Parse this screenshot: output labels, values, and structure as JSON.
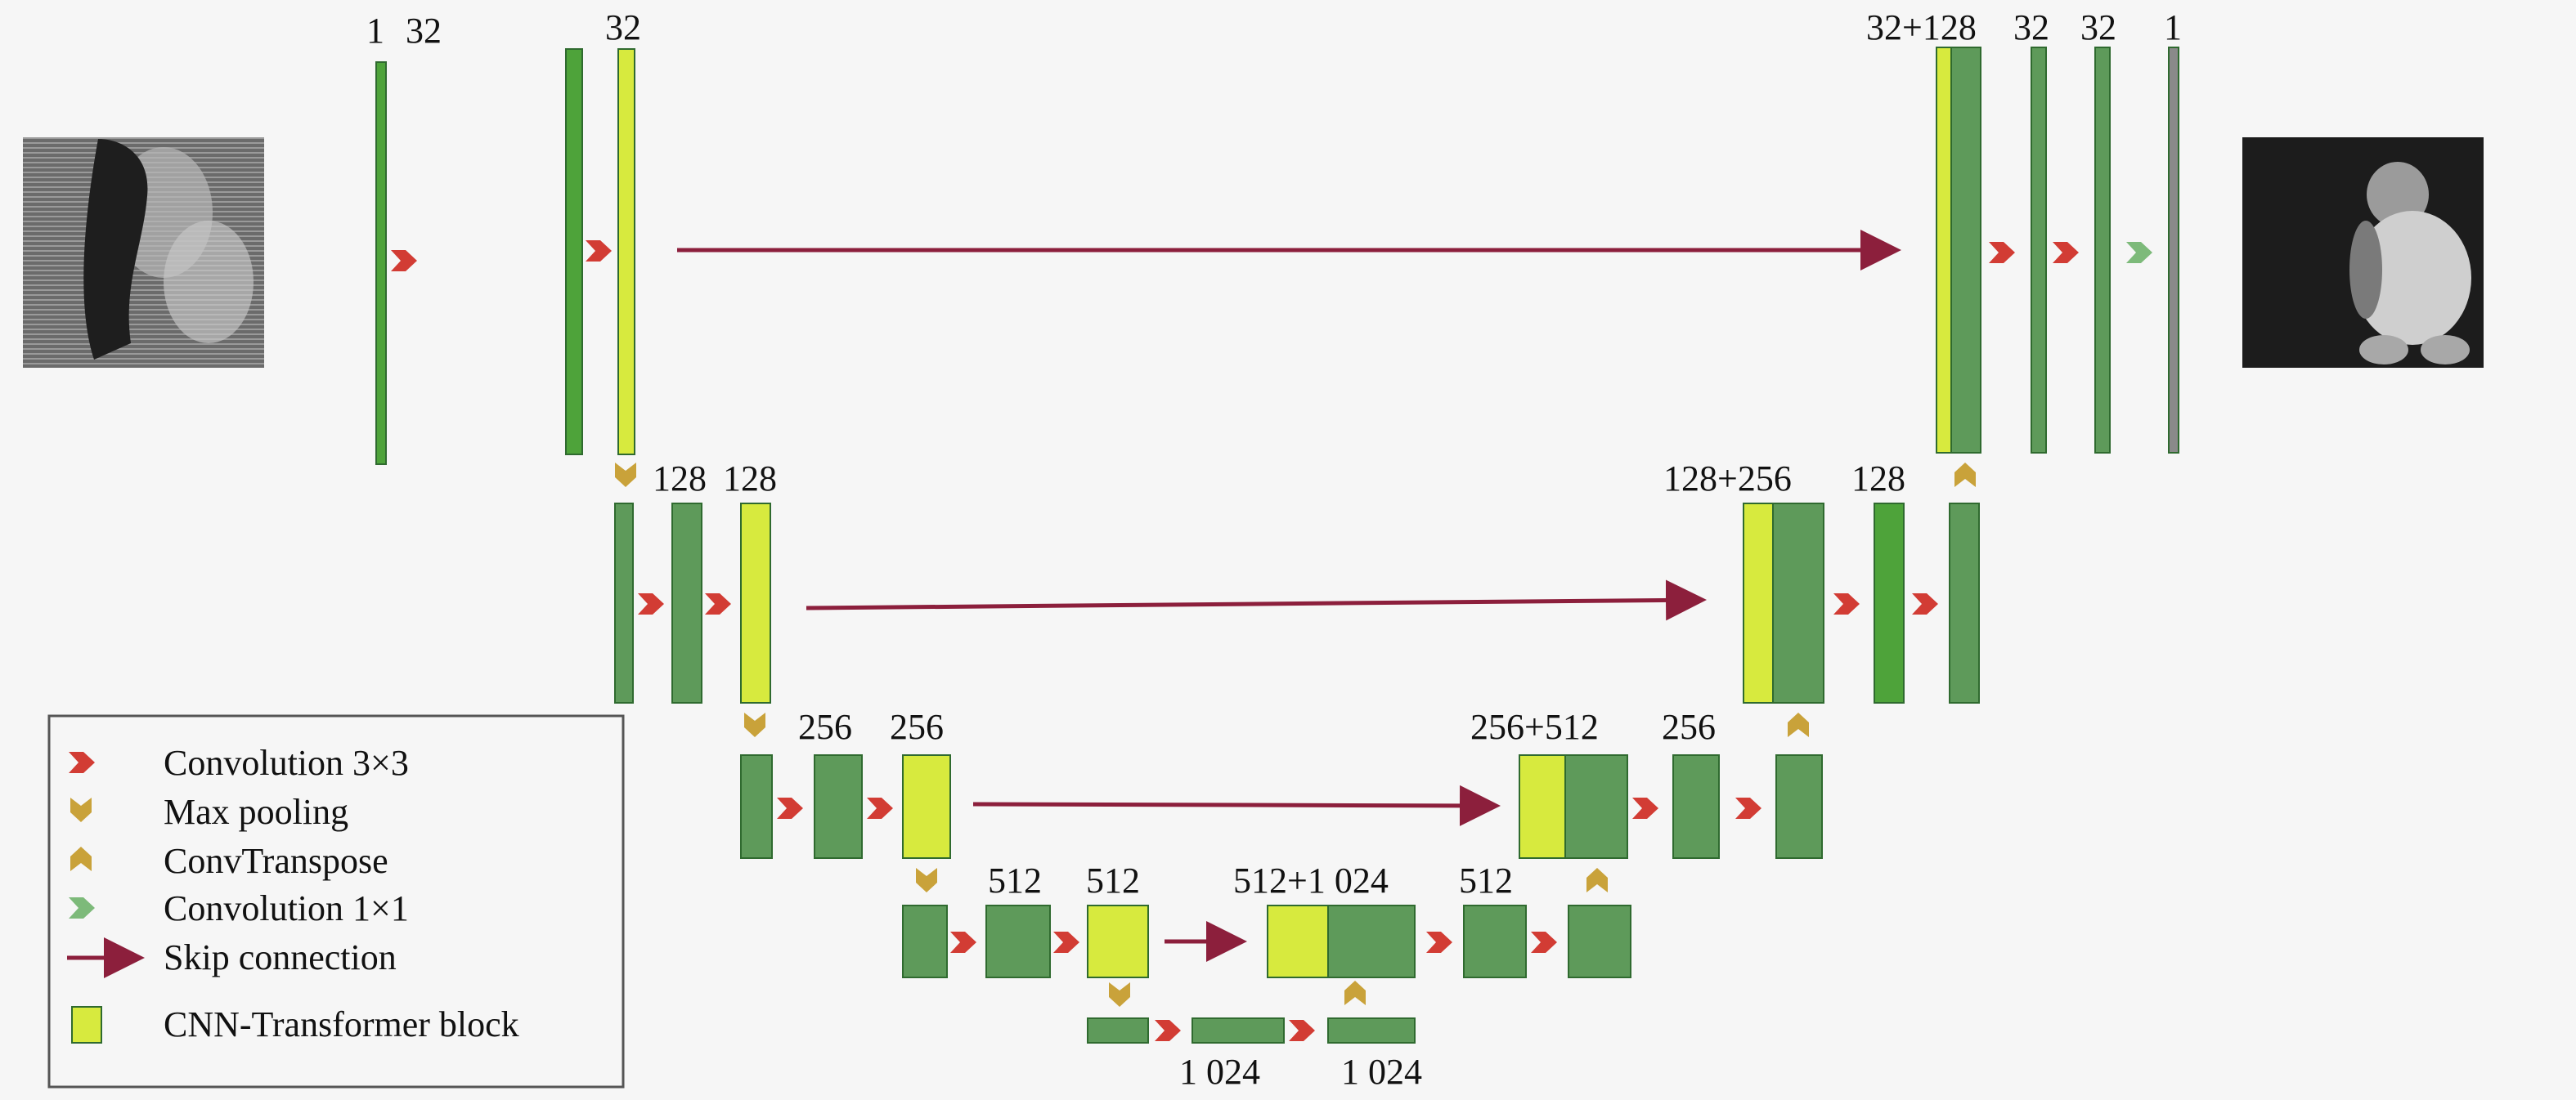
{
  "colors": {
    "background": "#f6f6f6",
    "feature_map_dark": "#5e9a5a",
    "feature_map_bright": "#4ea33a",
    "cnn_transformer_block": "#d7ea3e",
    "output_map": "#8a8a8a",
    "convolution_3x3": "#d23c34",
    "max_pooling": "#c9a23a",
    "conv_transpose": "#c9a23a",
    "convolution_1x1": "#7dba7a",
    "skip_connection": "#8c1f3c"
  },
  "channel_labels": {
    "in_1": "1",
    "in_32": "32",
    "enc1_32": "32",
    "enc2_128a": "128",
    "enc2_128b": "128",
    "enc3_256a": "256",
    "enc3_256b": "256",
    "enc4_512a": "512",
    "enc4_512b": "512",
    "bottom_1024a": "1 024",
    "bottom_1024b": "1 024",
    "dec4_concat": "512+1 024",
    "dec4_512": "512",
    "dec3_concat": "256+512",
    "dec3_256": "256",
    "dec2_concat": "128+256",
    "dec2_128": "128",
    "dec1_concat": "32+128",
    "dec1_32a": "32",
    "dec1_32b": "32",
    "out_1": "1"
  },
  "legend": {
    "items": [
      {
        "icon": "convolution-3x3-icon",
        "label": "Convolution 3×3"
      },
      {
        "icon": "max-pooling-icon",
        "label": "Max pooling"
      },
      {
        "icon": "conv-transpose-icon",
        "label": "ConvTranspose"
      },
      {
        "icon": "convolution-1x1-icon",
        "label": "Convolution 1×1"
      },
      {
        "icon": "skip-connection-icon",
        "label": "Skip connection"
      },
      {
        "icon": "cnn-transformer-block-icon",
        "label": "CNN-Transformer block"
      }
    ]
  }
}
